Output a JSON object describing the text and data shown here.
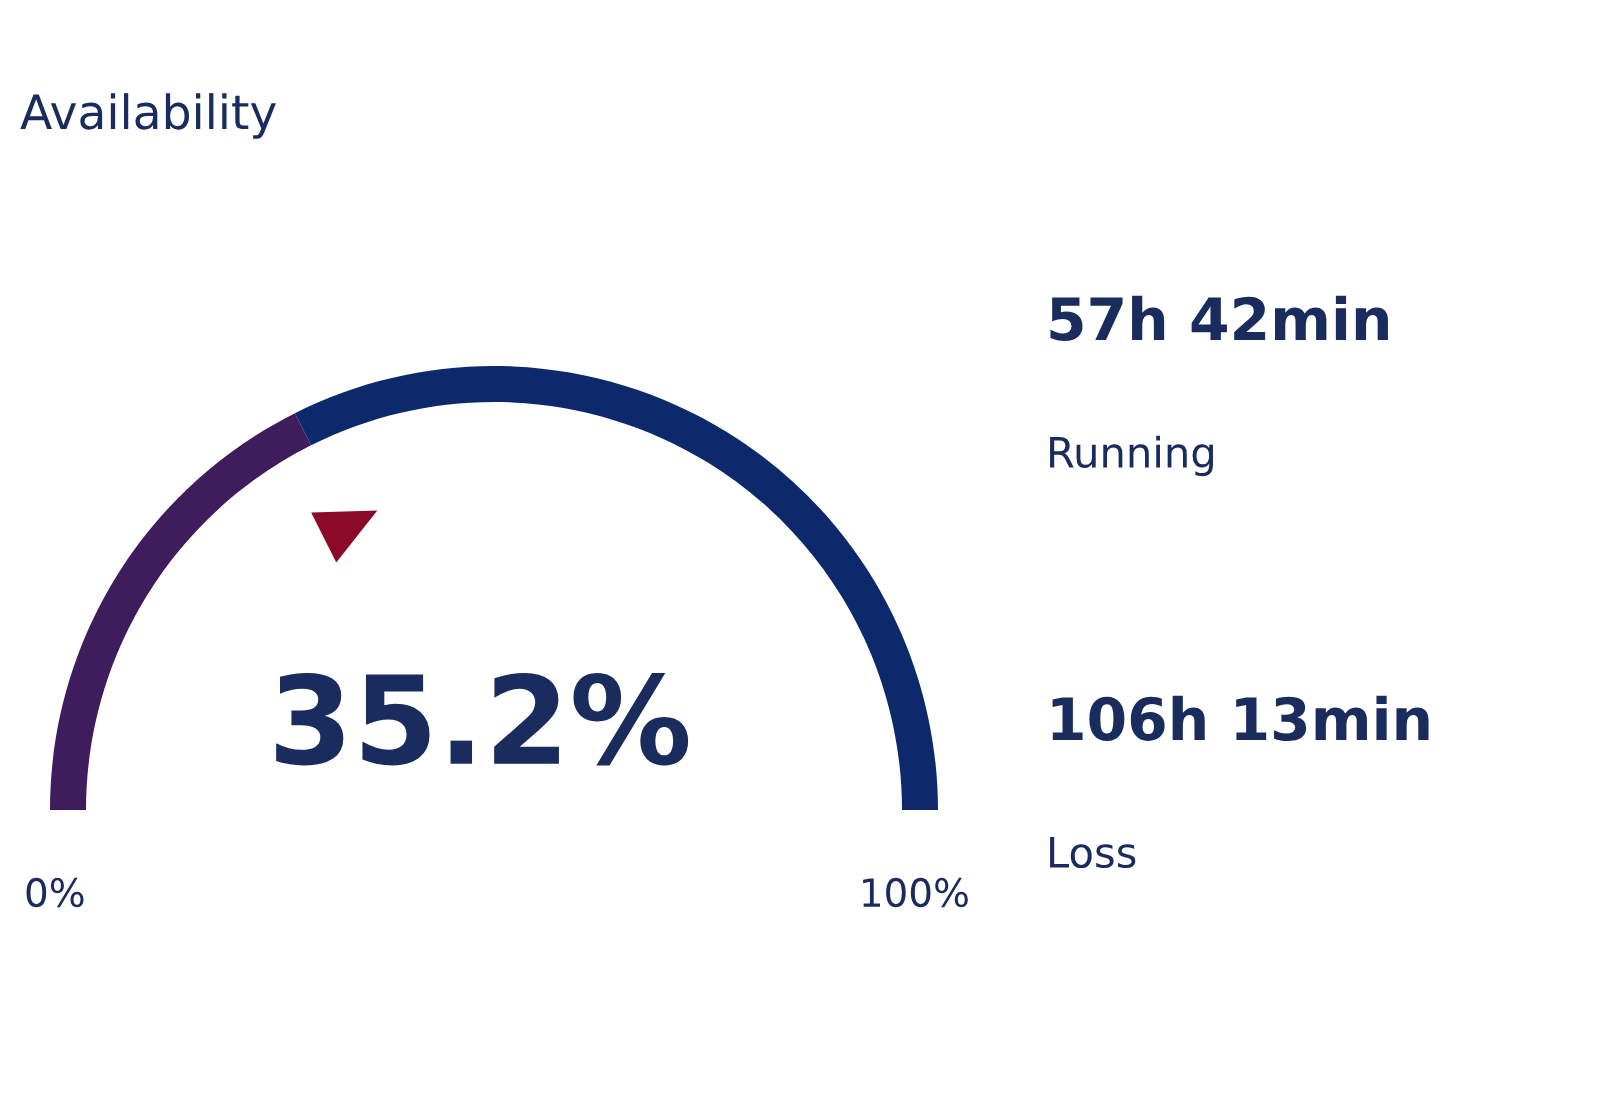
{
  "chart_data": {
    "type": "donut",
    "title": "Availability",
    "categories": [
      null,
      null
    ],
    "values": [
      35.2,
      64.8
    ],
    "colors": [
      "#3f1c5c",
      "#0c2a6b"
    ],
    "annotations": [
      "35.2%",
      "0%",
      "100%",
      "57h 42min",
      "Running",
      "106h 13min",
      "Loss"
    ]
  }
}
